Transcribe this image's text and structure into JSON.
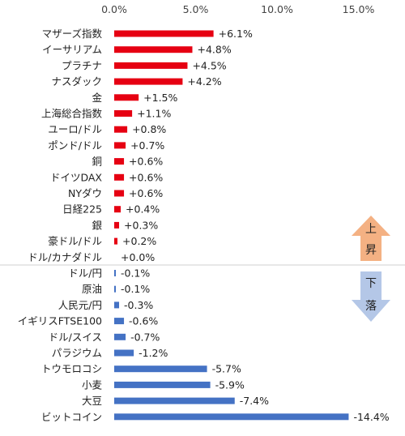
{
  "chart_data": {
    "type": "bar",
    "orientation": "horizontal",
    "xlim": [
      0,
      15
    ],
    "x_ticks": [
      "0.0%",
      "5.0%",
      "10.0%",
      "15.0%"
    ],
    "x_tick_values": [
      0,
      5,
      10,
      15
    ],
    "grid": false,
    "legend": "none",
    "categories": [
      "マザーズ指数",
      "イーサリアム",
      "プラチナ",
      "ナスダック",
      "金",
      "上海総合指数",
      "ユーロ/ドル",
      "ポンド/ドル",
      "銅",
      "ドイツDAX",
      "NYダウ",
      "日経225",
      "銀",
      "豪ドル/ドル",
      "ドル/カナダドル",
      "ドル/円",
      "原油",
      "人民元/円",
      "イギリスFTSE100",
      "ドル/スイス",
      "パラジウム",
      "トウモロコシ",
      "小麦",
      "大豆",
      "ビットコイン"
    ],
    "values": [
      6.1,
      4.8,
      4.5,
      4.2,
      1.5,
      1.1,
      0.8,
      0.7,
      0.6,
      0.6,
      0.6,
      0.4,
      0.3,
      0.2,
      0.0,
      -0.1,
      -0.1,
      -0.3,
      -0.6,
      -0.7,
      -1.2,
      -5.7,
      -5.9,
      -7.4,
      -14.4
    ],
    "data_labels": [
      "+6.1%",
      "+4.8%",
      "+4.5%",
      "+4.2%",
      "+1.5%",
      "+1.1%",
      "+0.8%",
      "+0.7%",
      "+0.6%",
      "+0.6%",
      "+0.6%",
      "+0.4%",
      "+0.3%",
      "+0.2%",
      "+0.0%",
      "-0.1%",
      "-0.1%",
      "-0.3%",
      "-0.6%",
      "-0.7%",
      "-1.2%",
      "-5.7%",
      "-5.9%",
      "-7.4%",
      "-14.4%"
    ],
    "bar_length": "absolute value",
    "colors": {
      "up": "#e60012",
      "down": "#4472c4"
    },
    "annotations": {
      "up": {
        "label_1": "上",
        "label_2": "昇",
        "color": "#f4b183"
      },
      "down": {
        "label_1": "下",
        "label_2": "落",
        "color": "#b4c7e7"
      }
    }
  }
}
